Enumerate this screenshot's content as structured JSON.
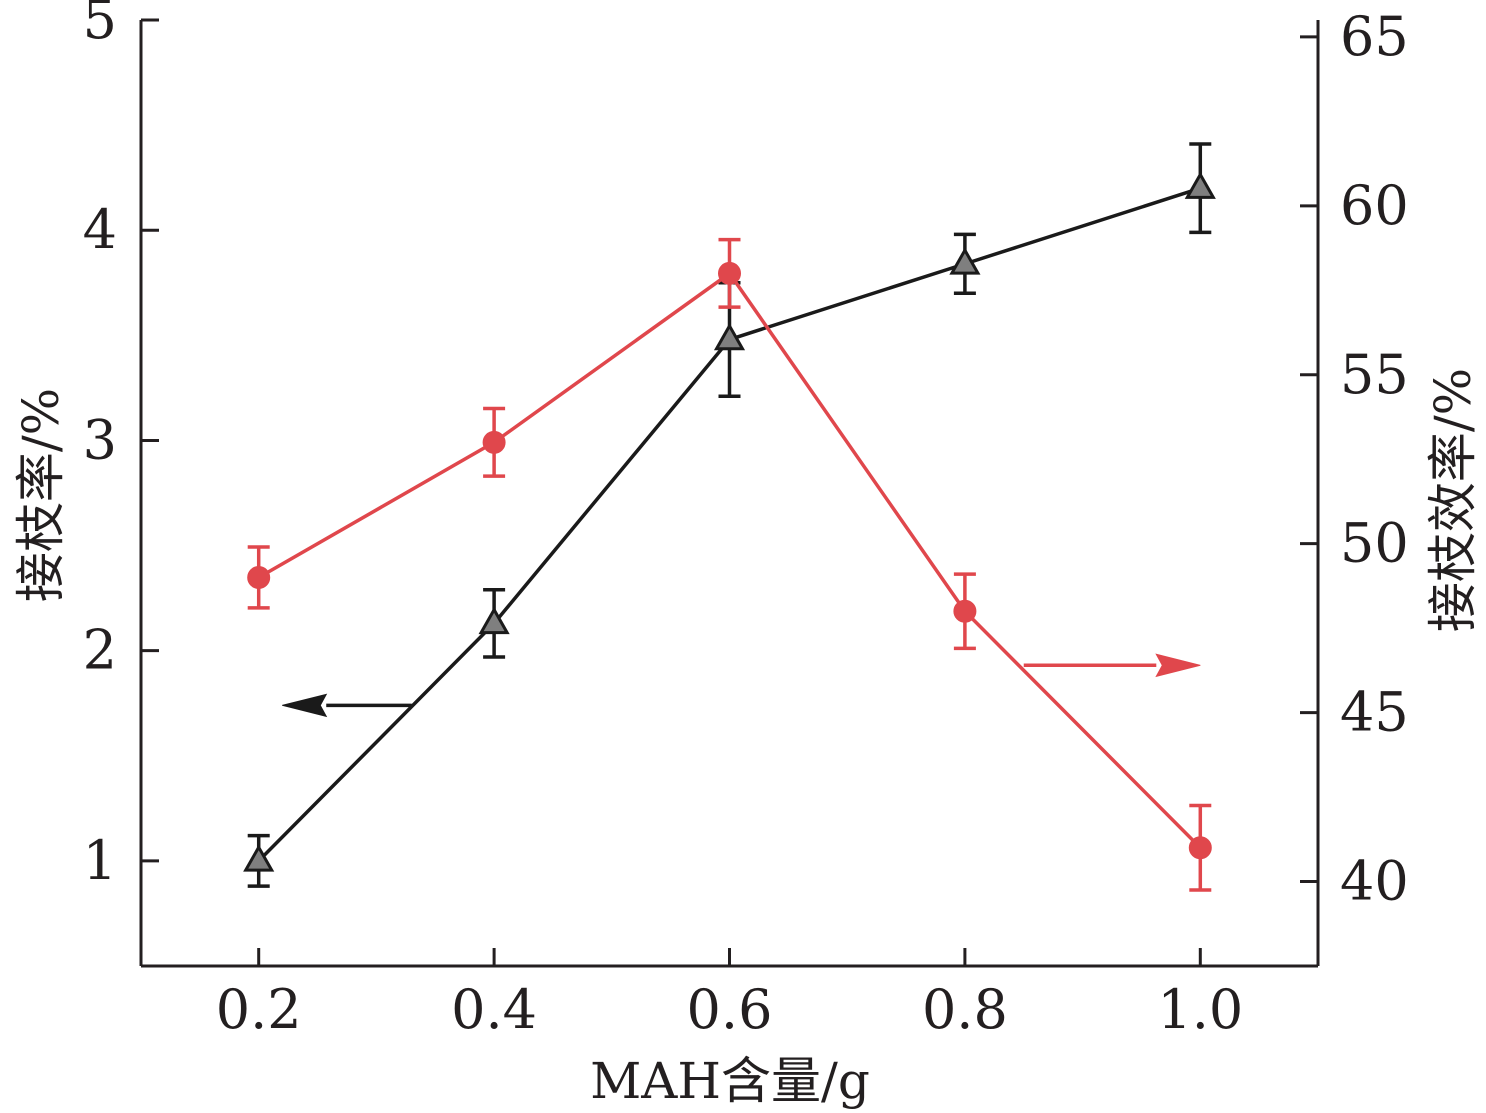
{
  "chart_data": {
    "type": "line",
    "x": [
      0.2,
      0.4,
      0.6,
      0.8,
      1.0
    ],
    "x_tick_labels": [
      "0.2",
      "0.4",
      "0.6",
      "0.8",
      "1.0"
    ],
    "xlabel": "MAH含量/g",
    "ylabel_left": "接枝率/%",
    "ylabel_right": "接枝效率/%",
    "xlim": [
      0.1,
      1.1
    ],
    "ylim_left": [
      0.5,
      5
    ],
    "ylim_right": [
      37.5,
      65.5
    ],
    "y_left_ticks": [
      1,
      2,
      3,
      4,
      5
    ],
    "y_right_ticks": [
      40,
      45,
      50,
      55,
      60,
      65
    ],
    "grid": false,
    "series": [
      {
        "axis": "left",
        "marker": "triangle",
        "color": "#1a1a1a",
        "marker_fill": "#7f7f7f",
        "values": [
          1.0,
          2.13,
          3.48,
          3.84,
          4.2
        ],
        "errors": [
          0.12,
          0.16,
          0.27,
          0.14,
          0.21
        ]
      },
      {
        "axis": "right",
        "marker": "circle",
        "color": "#e0474c",
        "marker_fill": "#e0474c",
        "values": [
          49.0,
          53.0,
          58.0,
          48.0,
          41.0
        ],
        "errors": [
          0.9,
          1.0,
          1.0,
          1.1,
          1.25
        ]
      }
    ],
    "annotations": [
      {
        "type": "arrow",
        "direction": "left",
        "color": "#1a1a1a",
        "y_axis": "left",
        "x_from": 0.33,
        "x_to": 0.22,
        "y": 1.74
      },
      {
        "type": "arrow",
        "direction": "right",
        "color": "#e0474c",
        "y_axis": "right",
        "x_from": 0.85,
        "x_to": 1.0,
        "y": 46.4
      }
    ]
  }
}
